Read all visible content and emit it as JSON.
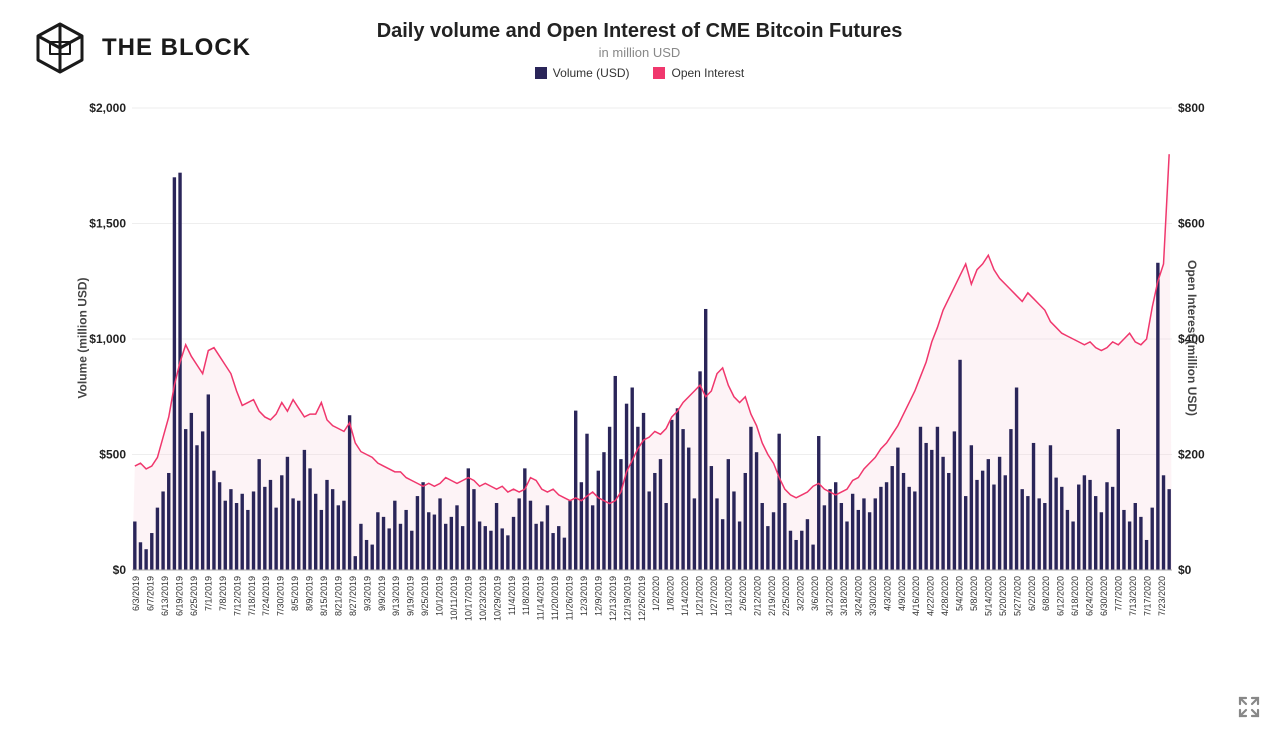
{
  "brand": {
    "name": "THE BLOCK"
  },
  "chart": {
    "type": "bar+area",
    "title": "Daily volume and Open Interest of CME Bitcoin Futures",
    "subtitle": "in million USD",
    "legend": {
      "volume": {
        "label": "Volume (USD)",
        "color": "#2a2559"
      },
      "open_interest": {
        "label": "Open Interest",
        "color": "#f0376d"
      }
    },
    "colors": {
      "bar": "#2a2559",
      "oi_line": "#f0376d",
      "oi_fill": "#f9d0dd",
      "grid": "#eeeeee",
      "axis": "#aaaaaa",
      "background": "#ffffff",
      "text": "#222222"
    },
    "yLeft": {
      "label": "Volume (million USD)",
      "min": 0,
      "max": 2000,
      "tick_step": 500,
      "ticks": [
        "$0",
        "$500",
        "$1,000",
        "$1,500",
        "$2,000"
      ]
    },
    "yRight": {
      "label": "Open Interest (million USD)",
      "min": 0,
      "max": 800,
      "tick_step": 200,
      "ticks": [
        "$0",
        "$200",
        "$400",
        "$600",
        "$800"
      ]
    },
    "x_labels": [
      "6/3/2019",
      "6/7/2019",
      "6/13/2019",
      "6/19/2019",
      "6/25/2019",
      "7/1/2019",
      "7/8/2019",
      "7/12/2019",
      "7/18/2019",
      "7/24/2019",
      "7/30/2019",
      "8/5/2019",
      "8/9/2019",
      "8/15/2019",
      "8/21/2019",
      "8/27/2019",
      "9/3/2019",
      "9/9/2019",
      "9/13/2019",
      "9/19/2019",
      "9/25/2019",
      "10/1/2019",
      "10/11/2019",
      "10/17/2019",
      "10/23/2019",
      "10/29/2019",
      "11/4/2019",
      "11/8/2019",
      "11/14/2019",
      "11/20/2019",
      "11/26/2019",
      "12/3/2019",
      "12/9/2019",
      "12/13/2019",
      "12/19/2019",
      "12/26/2019",
      "1/2/2020",
      "1/8/2020",
      "1/14/2020",
      "1/21/2020",
      "1/27/2020",
      "1/31/2020",
      "2/6/2020",
      "2/12/2020",
      "2/19/2020",
      "2/25/2020",
      "3/2/2020",
      "3/6/2020",
      "3/12/2020",
      "3/18/2020",
      "3/24/2020",
      "3/30/2020",
      "4/3/2020",
      "4/9/2020",
      "4/16/2020",
      "4/22/2020",
      "4/28/2020",
      "5/4/2020",
      "5/8/2020",
      "5/14/2020",
      "5/20/2020",
      "5/27/2020",
      "6/2/2020",
      "6/8/2020",
      "6/12/2020",
      "6/18/2020",
      "6/24/2020",
      "6/30/2020",
      "7/7/2020",
      "7/13/2020",
      "7/17/2020",
      "7/23/2020"
    ],
    "volume": [
      210,
      120,
      90,
      160,
      270,
      340,
      420,
      1700,
      1720,
      610,
      680,
      540,
      600,
      760,
      430,
      380,
      300,
      350,
      290,
      330,
      260,
      340,
      480,
      360,
      390,
      270,
      410,
      490,
      310,
      300,
      520,
      440,
      330,
      260,
      390,
      350,
      280,
      300,
      670,
      60,
      200,
      130,
      110,
      250,
      230,
      180,
      300,
      200,
      260,
      170,
      320,
      380,
      250,
      240,
      310,
      200,
      230,
      280,
      190,
      440,
      350,
      210,
      190,
      170,
      290,
      180,
      150,
      230,
      310,
      440,
      300,
      200,
      210,
      280,
      160,
      190,
      140,
      300,
      690,
      380,
      590,
      280,
      430,
      510,
      620,
      840,
      480,
      720,
      790,
      620,
      680,
      340,
      420,
      480,
      290,
      650,
      700,
      610,
      530,
      310,
      860,
      1130,
      450,
      310,
      220,
      480,
      340,
      210,
      420,
      620,
      510,
      290,
      190,
      250,
      590,
      290,
      170,
      130,
      170,
      220,
      110,
      580,
      280,
      350,
      380,
      290,
      210,
      330,
      260,
      310,
      250,
      310,
      360,
      380,
      450,
      530,
      420,
      360,
      340,
      620,
      550,
      520,
      620,
      490,
      420,
      600,
      910,
      320,
      540,
      390,
      430,
      480,
      370,
      490,
      410,
      610,
      790,
      350,
      320,
      550,
      310,
      290,
      540,
      400,
      360,
      260,
      210,
      370,
      410,
      390,
      320,
      250,
      380,
      360,
      610,
      260,
      210,
      290,
      230,
      130,
      270,
      1330,
      410,
      350
    ],
    "open_interest": [
      180,
      185,
      175,
      180,
      195,
      230,
      265,
      320,
      360,
      390,
      370,
      355,
      340,
      380,
      385,
      370,
      355,
      340,
      310,
      285,
      290,
      295,
      275,
      265,
      260,
      270,
      290,
      275,
      295,
      280,
      265,
      270,
      270,
      290,
      260,
      250,
      245,
      240,
      255,
      220,
      205,
      200,
      195,
      185,
      180,
      175,
      170,
      170,
      160,
      155,
      150,
      145,
      150,
      145,
      150,
      160,
      155,
      150,
      155,
      160,
      155,
      145,
      150,
      145,
      140,
      145,
      135,
      140,
      135,
      140,
      160,
      155,
      140,
      135,
      140,
      130,
      125,
      120,
      125,
      120,
      128,
      135,
      125,
      120,
      115,
      120,
      135,
      170,
      190,
      210,
      225,
      230,
      240,
      235,
      245,
      265,
      275,
      290,
      300,
      310,
      320,
      300,
      310,
      340,
      350,
      320,
      300,
      290,
      300,
      270,
      250,
      220,
      200,
      185,
      160,
      140,
      130,
      125,
      130,
      135,
      145,
      150,
      140,
      135,
      130,
      135,
      140,
      155,
      160,
      175,
      185,
      195,
      210,
      220,
      235,
      250,
      270,
      290,
      310,
      335,
      360,
      395,
      420,
      450,
      470,
      490,
      510,
      530,
      495,
      520,
      530,
      545,
      520,
      505,
      495,
      485,
      475,
      465,
      480,
      470,
      460,
      450,
      430,
      420,
      410,
      405,
      400,
      395,
      390,
      395,
      385,
      380,
      385,
      395,
      390,
      400,
      410,
      395,
      390,
      400,
      455,
      500,
      530,
      720
    ],
    "expand_icon_color": "#888888"
  }
}
